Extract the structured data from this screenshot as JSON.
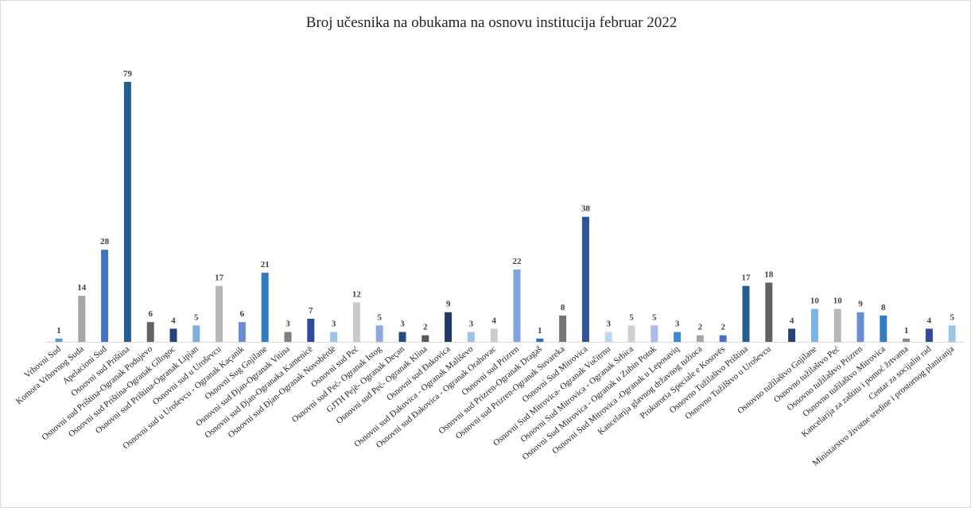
{
  "chart_data": {
    "type": "bar",
    "title": "Broj učesnika na obukama na osnovu institucija  februar 2022",
    "categories": [
      "Vrhovni Sud",
      "Komora Vrhovnog Suda",
      "Apelacioni Sud",
      "Osnovni sud Priština",
      "Osnovni sud Priština-Ogranak Podujevo",
      "Osnovni sud Priština-Ogranak Gllogoc",
      "Osnovni sud Priština-Ogranak Lipjan",
      "Osnovni sud u Uroševcu",
      "Osnovni sud u Uroševcu - Ogranak Kaçanik",
      "Osnovni Sug Gnjilane",
      "Osnovni sud Đjan-Ogranak Vitina",
      "Osnovni sud Đjan-Ogranaka Kamenicë",
      "Osnovni sud Đjan-Ogranak  Novobërdë",
      "Osnovni sud Peć",
      "Osnovni sud Peć- Ogranak Istog",
      "GJTH Pejë- Ogranak Deçan",
      "Osnovni sud Peć- Ogranak Klina",
      "Osnovni sud Đakovica",
      "Osnovni sud Đakovica - Ogranak Mališevo",
      "Osnovni sud Đakovica - Ogranak Orahovac",
      "Osnovni sud Prizren",
      "Osnovni sud Prizren-Ogranak Dragaš",
      "Osnovni sud Prizren-Ogranak Suvareka",
      "Osnovni Sud Mitrovica",
      "Osnovni Sud Mitrovica- Ogranak Vučitrnu",
      "Osnovni Sud Mitrovica - Ogranak Srbica",
      "Osnovni Sud Mitrovica - Ogranak u Zubin Potok",
      "Osnovni Sud Mitrovica -Ogranak u Leposaviq",
      "Kancelarija glavnog državnog tužioca",
      "Prokuroria Speciale e Kosovës",
      "Osnovno Tužilaštvo Priština",
      "Osnovno Tužilštvo u Uroševcu",
      null,
      "Osnovno tužilaštvo Gnjilane",
      "Osnovno tužilaštvo Peć",
      "Osnovno tužilaštvo Prizren",
      "Osnovno tužilaštvo Mitrovica",
      "Kancelarija za zaštitu i pomoć žrtvama",
      "Centar za socijalni rad",
      "Ministarstvo životne sredine i prostornog planiranja"
    ],
    "values": [
      1,
      14,
      28,
      79,
      6,
      4,
      5,
      17,
      6,
      21,
      3,
      7,
      3,
      12,
      5,
      3,
      2,
      9,
      3,
      4,
      22,
      1,
      8,
      38,
      3,
      5,
      5,
      3,
      2,
      2,
      17,
      18,
      4,
      10,
      10,
      9,
      8,
      1,
      4,
      5
    ],
    "colors": [
      "#5b9bd5",
      "#a5a5a5",
      "#4472c4",
      "#255e91",
      "#636363",
      "#264478",
      "#7cafdd",
      "#b7b7b7",
      "#698ed0",
      "#327dc2",
      "#7f7f7f",
      "#2f4b9a",
      "#9dc3e6",
      "#c9c9c9",
      "#8faadc",
      "#1f4e79",
      "#595959",
      "#203864",
      "#9dc3e6",
      "#cccccc",
      "#7fa3dc",
      "#2e75b6",
      "#757575",
      "#2f5597",
      "#bdd7ee",
      "#d0d0d0",
      "#a9bde8",
      "#3c8dd0",
      "#a5a5a5",
      "#4472c4",
      "#255e91",
      "#636363",
      "#264478",
      "#7cb2e6",
      "#b7b7b7",
      "#698ed0",
      "#327dc2",
      "#8a8a8a",
      "#2f4b9a",
      "#9dc3e6"
    ]
  }
}
